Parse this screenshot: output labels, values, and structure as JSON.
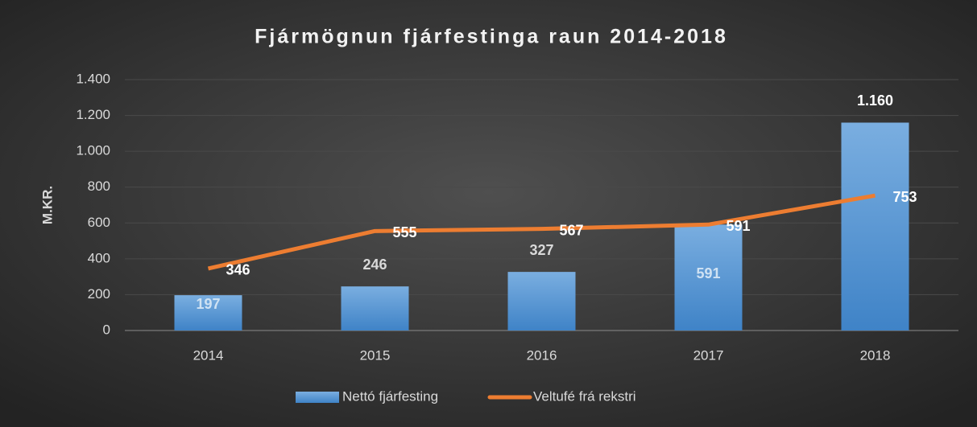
{
  "chart_data": {
    "type": "bar_line",
    "title": "Fjármögnun fjárfestinga raun 2014-2018",
    "y_label": "M.KR.",
    "categories": [
      "2014",
      "2015",
      "2016",
      "2017",
      "2018"
    ],
    "series": [
      {
        "name": "Nettó fjárfesting",
        "type": "bar",
        "color": "#5b9bd5",
        "values": [
          197,
          246,
          327,
          591,
          1160
        ],
        "value_labels": [
          "197",
          "246",
          "327",
          "591",
          "1.160"
        ]
      },
      {
        "name": "Veltufé frá rekstri",
        "type": "line",
        "color": "#ed7d31",
        "values": [
          346,
          555,
          567,
          591,
          753
        ]
      }
    ],
    "ylim": [
      0,
      1400
    ],
    "yticks": [
      0,
      200,
      400,
      600,
      800,
      {
        "value": 1000,
        "label": "1.000"
      },
      {
        "value": 1200,
        "label": "1.200"
      },
      {
        "value": 1400,
        "label": "1.400"
      }
    ],
    "grid": true
  }
}
